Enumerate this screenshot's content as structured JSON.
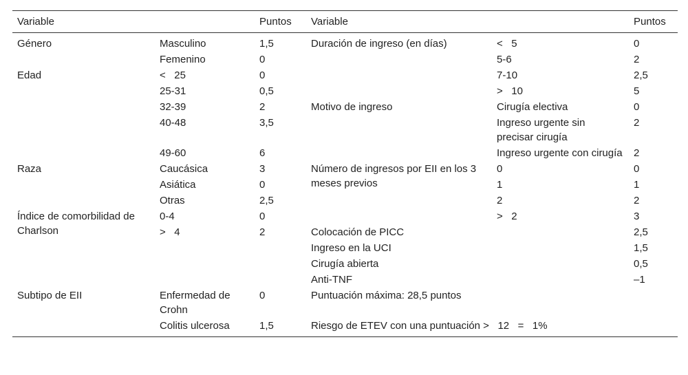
{
  "table": {
    "header": [
      "Variable",
      "Puntos",
      "Variable",
      "Puntos"
    ],
    "rows": [
      [
        "Género",
        "Masculino",
        "1,5",
        "Duración de ingreso (en días)",
        "<   5",
        "0"
      ],
      [
        "Femenino",
        "0",
        "5-6",
        "2"
      ],
      [
        "Edad",
        "<   25",
        "0",
        "7-10",
        "2,5"
      ],
      [
        "25-31",
        "0,5",
        ">   10",
        "5"
      ],
      [
        "32-39",
        "2",
        "Motivo de ingreso",
        "Cirugía electiva",
        "0"
      ],
      [
        "40-48",
        "3,5",
        "Ingreso urgente sin precisar cirugía",
        "2"
      ],
      [
        "49-60",
        "6",
        "Ingreso urgente con cirugía",
        "2"
      ],
      [
        "Raza",
        "Caucásica",
        "3",
        "Número de ingresos por EII en los 3 meses previos",
        "0",
        "0"
      ],
      [
        "Asiática",
        "0",
        "1",
        "1"
      ],
      [
        "Otras",
        "2,5",
        "2",
        "2"
      ],
      [
        "Índice de comorbilidad de Charlson",
        "0-4",
        "0",
        ">   2",
        "3"
      ],
      [
        ">   4",
        "2",
        "Colocación de PICC",
        "2,5"
      ],
      [
        "Ingreso en la UCI",
        "1,5"
      ],
      [
        "Cirugía abierta",
        "0,5"
      ],
      [
        "Anti-TNF",
        "–1"
      ],
      [
        "Subtipo de EII",
        "Enfermedad de Crohn",
        "0",
        "Puntuación máxima: 28,5 puntos"
      ],
      [
        "Colitis ulcerosa",
        "1,5",
        "Riesgo de ETEV con una puntuación >   12   =   1%"
      ]
    ]
  }
}
